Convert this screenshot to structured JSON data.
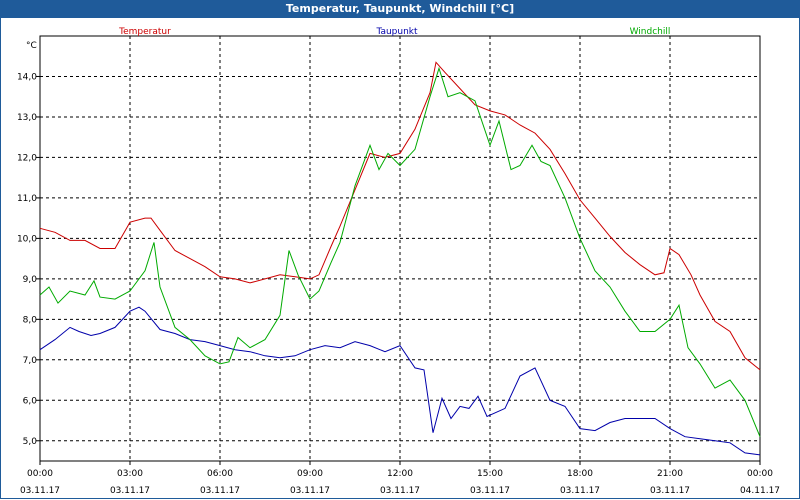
{
  "window": {
    "title": "Temperatur, Taupunkt, Windchill [°C]"
  },
  "chart_data": {
    "type": "line",
    "title": "Temperatur, Taupunkt, Windchill [°C]",
    "ylabel": "°C",
    "ylim": [
      4.5,
      15.0
    ],
    "yticks": [
      "14,0",
      "13,0",
      "12,0",
      "11,0",
      "10,0",
      "9,0",
      "8,0",
      "7,0",
      "6,0",
      "5,0"
    ],
    "ytick_values": [
      14,
      13,
      12,
      11,
      10,
      9,
      8,
      7,
      6,
      5
    ],
    "xlim": [
      0,
      24
    ],
    "xticks": [
      {
        "t": 0,
        "time": "00:00",
        "date": "03.11.17"
      },
      {
        "t": 3,
        "time": "03:00",
        "date": "03.11.17"
      },
      {
        "t": 6,
        "time": "06:00",
        "date": "03.11.17"
      },
      {
        "t": 9,
        "time": "09:00",
        "date": "03.11.17"
      },
      {
        "t": 12,
        "time": "12:00",
        "date": "03.11.17"
      },
      {
        "t": 15,
        "time": "15:00",
        "date": "03.11.17"
      },
      {
        "t": 18,
        "time": "18:00",
        "date": "03.11.17"
      },
      {
        "t": 21,
        "time": "21:00",
        "date": "03.11.17"
      },
      {
        "t": 24,
        "time": "00:00",
        "date": "04.11.17"
      }
    ],
    "grid": true,
    "series": [
      {
        "name": "Temperatur",
        "color": "#cc0000",
        "points": [
          [
            0,
            10.25
          ],
          [
            0.5,
            10.15
          ],
          [
            1,
            9.95
          ],
          [
            1.5,
            9.95
          ],
          [
            2,
            9.75
          ],
          [
            2.5,
            9.75
          ],
          [
            3,
            10.4
          ],
          [
            3.5,
            10.5
          ],
          [
            3.7,
            10.5
          ],
          [
            4,
            10.2
          ],
          [
            4.5,
            9.7
          ],
          [
            5,
            9.5
          ],
          [
            5.5,
            9.3
          ],
          [
            6,
            9.05
          ],
          [
            6.5,
            9.0
          ],
          [
            7,
            8.9
          ],
          [
            7.5,
            9.0
          ],
          [
            8,
            9.1
          ],
          [
            8.5,
            9.05
          ],
          [
            9,
            9.0
          ],
          [
            9.3,
            9.1
          ],
          [
            9.7,
            9.8
          ],
          [
            10,
            10.3
          ],
          [
            10.5,
            11.2
          ],
          [
            11,
            12.1
          ],
          [
            11.5,
            12.0
          ],
          [
            12,
            12.1
          ],
          [
            12.5,
            12.7
          ],
          [
            13,
            13.6
          ],
          [
            13.2,
            14.35
          ],
          [
            13.5,
            14.1
          ],
          [
            14,
            13.7
          ],
          [
            14.5,
            13.3
          ],
          [
            15,
            13.15
          ],
          [
            15.5,
            13.05
          ],
          [
            16,
            12.8
          ],
          [
            16.5,
            12.6
          ],
          [
            17,
            12.2
          ],
          [
            17.5,
            11.6
          ],
          [
            18,
            10.95
          ],
          [
            18.5,
            10.5
          ],
          [
            19,
            10.05
          ],
          [
            19.5,
            9.65
          ],
          [
            20,
            9.35
          ],
          [
            20.5,
            9.1
          ],
          [
            20.8,
            9.15
          ],
          [
            21,
            9.75
          ],
          [
            21.3,
            9.6
          ],
          [
            21.7,
            9.1
          ],
          [
            22,
            8.6
          ],
          [
            22.5,
            7.95
          ],
          [
            23,
            7.7
          ],
          [
            23.5,
            7.05
          ],
          [
            24,
            6.75
          ]
        ]
      },
      {
        "name": "Taupunkt",
        "color": "#0000aa",
        "points": [
          [
            0,
            7.25
          ],
          [
            0.5,
            7.5
          ],
          [
            1,
            7.8
          ],
          [
            1.3,
            7.7
          ],
          [
            1.7,
            7.6
          ],
          [
            2,
            7.65
          ],
          [
            2.5,
            7.8
          ],
          [
            3,
            8.2
          ],
          [
            3.3,
            8.3
          ],
          [
            3.5,
            8.2
          ],
          [
            4,
            7.75
          ],
          [
            4.5,
            7.65
          ],
          [
            5,
            7.5
          ],
          [
            5.5,
            7.45
          ],
          [
            6,
            7.35
          ],
          [
            6.5,
            7.25
          ],
          [
            7,
            7.2
          ],
          [
            7.5,
            7.1
          ],
          [
            8,
            7.05
          ],
          [
            8.5,
            7.1
          ],
          [
            9,
            7.25
          ],
          [
            9.5,
            7.35
          ],
          [
            10,
            7.3
          ],
          [
            10.5,
            7.45
          ],
          [
            11,
            7.35
          ],
          [
            11.5,
            7.2
          ],
          [
            12,
            7.35
          ],
          [
            12.5,
            6.8
          ],
          [
            12.8,
            6.75
          ],
          [
            13.1,
            5.2
          ],
          [
            13.4,
            6.05
          ],
          [
            13.7,
            5.55
          ],
          [
            14,
            5.85
          ],
          [
            14.3,
            5.8
          ],
          [
            14.6,
            6.1
          ],
          [
            14.9,
            5.6
          ],
          [
            15.2,
            5.7
          ],
          [
            15.5,
            5.8
          ],
          [
            16,
            6.6
          ],
          [
            16.5,
            6.8
          ],
          [
            17,
            6.0
          ],
          [
            17.5,
            5.85
          ],
          [
            18,
            5.3
          ],
          [
            18.5,
            5.25
          ],
          [
            19,
            5.45
          ],
          [
            19.5,
            5.55
          ],
          [
            20,
            5.55
          ],
          [
            20.5,
            5.55
          ],
          [
            21,
            5.3
          ],
          [
            21.5,
            5.1
          ],
          [
            22,
            5.05
          ],
          [
            22.5,
            5.0
          ],
          [
            23,
            4.95
          ],
          [
            23.5,
            4.7
          ],
          [
            24,
            4.65
          ]
        ]
      },
      {
        "name": "Windchill",
        "color": "#00aa00",
        "points": [
          [
            0,
            8.6
          ],
          [
            0.3,
            8.8
          ],
          [
            0.6,
            8.4
          ],
          [
            1,
            8.7
          ],
          [
            1.5,
            8.6
          ],
          [
            1.8,
            8.95
          ],
          [
            2,
            8.55
          ],
          [
            2.5,
            8.5
          ],
          [
            3,
            8.7
          ],
          [
            3.5,
            9.2
          ],
          [
            3.8,
            9.9
          ],
          [
            4,
            8.8
          ],
          [
            4.5,
            7.8
          ],
          [
            5,
            7.5
          ],
          [
            5.5,
            7.1
          ],
          [
            6,
            6.9
          ],
          [
            6.3,
            6.95
          ],
          [
            6.6,
            7.55
          ],
          [
            7,
            7.3
          ],
          [
            7.5,
            7.5
          ],
          [
            8,
            8.1
          ],
          [
            8.3,
            9.7
          ],
          [
            8.6,
            9.1
          ],
          [
            9,
            8.5
          ],
          [
            9.3,
            8.7
          ],
          [
            9.7,
            9.4
          ],
          [
            10,
            9.9
          ],
          [
            10.5,
            11.3
          ],
          [
            11,
            12.3
          ],
          [
            11.3,
            11.7
          ],
          [
            11.6,
            12.1
          ],
          [
            12,
            11.8
          ],
          [
            12.5,
            12.2
          ],
          [
            13,
            13.5
          ],
          [
            13.3,
            14.2
          ],
          [
            13.6,
            13.5
          ],
          [
            14,
            13.6
          ],
          [
            14.5,
            13.4
          ],
          [
            15,
            12.3
          ],
          [
            15.3,
            12.9
          ],
          [
            15.7,
            11.7
          ],
          [
            16,
            11.8
          ],
          [
            16.4,
            12.3
          ],
          [
            16.7,
            11.9
          ],
          [
            17,
            11.8
          ],
          [
            17.5,
            11.0
          ],
          [
            18,
            10.0
          ],
          [
            18.5,
            9.2
          ],
          [
            19,
            8.8
          ],
          [
            19.5,
            8.2
          ],
          [
            20,
            7.7
          ],
          [
            20.5,
            7.7
          ],
          [
            21,
            8.0
          ],
          [
            21.3,
            8.35
          ],
          [
            21.6,
            7.3
          ],
          [
            22,
            6.9
          ],
          [
            22.5,
            6.3
          ],
          [
            23,
            6.5
          ],
          [
            23.5,
            6.0
          ],
          [
            24,
            5.1
          ]
        ]
      }
    ]
  }
}
